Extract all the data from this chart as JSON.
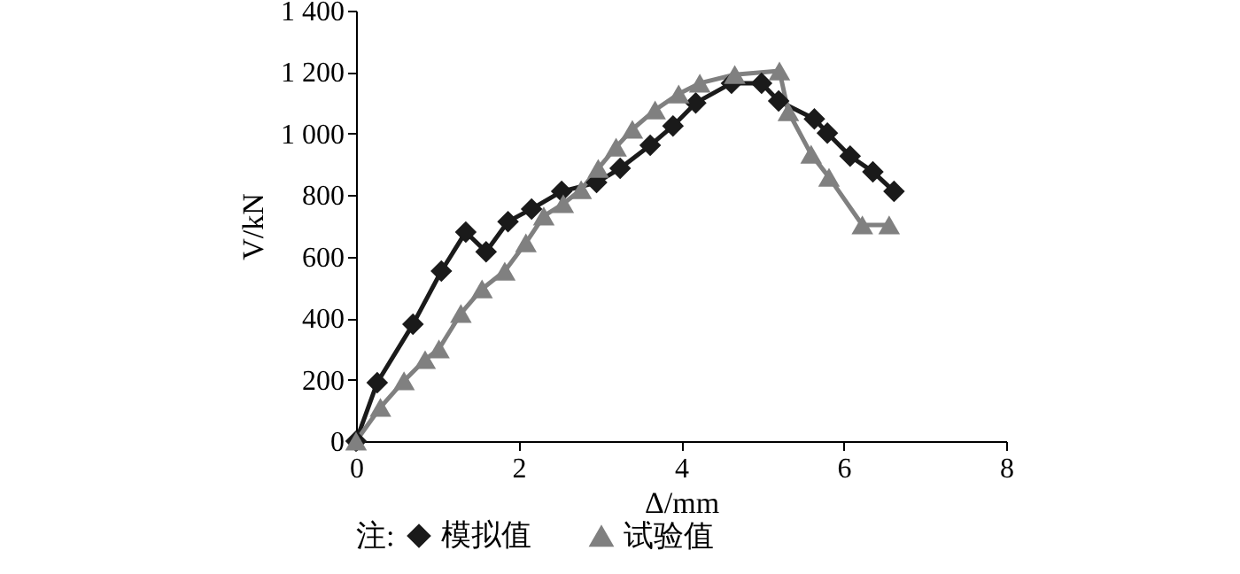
{
  "chart_data": {
    "type": "line",
    "xlabel": "Δ/mm",
    "ylabel": "V/kN",
    "legend_title": "注:",
    "legend": "bottom",
    "grid": false,
    "xlim": [
      0,
      8
    ],
    "xticks": [
      0,
      2,
      4,
      6,
      8
    ],
    "ylim": [
      0,
      1400
    ],
    "yticks": [
      0,
      200,
      400,
      600,
      800,
      {
        "value": 1000,
        "label": "1 000"
      },
      {
        "value": 1200,
        "label": "1 200"
      },
      {
        "value": 1400,
        "label": "1 400"
      }
    ],
    "series": [
      {
        "name": "模拟值",
        "color": "#1a1a1a",
        "marker": "diamond",
        "x": [
          0,
          0.26,
          0.7,
          1.05,
          1.35,
          1.6,
          1.87,
          2.16,
          2.53,
          2.96,
          3.25,
          3.62,
          3.9,
          4.18,
          4.62,
          4.99,
          5.2,
          5.64,
          5.8,
          6.08,
          6.36,
          6.62
        ],
        "values": [
          0,
          190,
          380,
          553,
          680,
          616,
          714,
          755,
          812,
          841,
          887,
          962,
          1025,
          1100,
          1164,
          1164,
          1106,
          1048,
          1002,
          927,
          876,
          812
        ]
      },
      {
        "name": "试验值",
        "color": "#808080",
        "marker": "triangle",
        "x": [
          0,
          0.3,
          0.59,
          0.85,
          1.02,
          1.29,
          1.55,
          1.83,
          2.09,
          2.31,
          2.55,
          2.77,
          2.98,
          3.2,
          3.4,
          3.68,
          3.97,
          4.23,
          4.66,
          5.21,
          5.32,
          5.6,
          5.82,
          6.23,
          6.56
        ],
        "values": [
          0,
          110,
          196,
          265,
          300,
          415,
          495,
          553,
          645,
          732,
          772,
          818,
          887,
          956,
          1014,
          1077,
          1129,
          1164,
          1192,
          1204,
          1071,
          933,
          858,
          703,
          703
        ]
      }
    ]
  }
}
